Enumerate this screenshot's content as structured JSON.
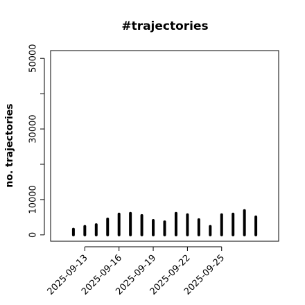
{
  "chart_data": {
    "type": "bar",
    "style": "needle",
    "title": "#trajectories",
    "y_label": "no. trajectories",
    "x": [
      "2025-09-12",
      "2025-09-13",
      "2025-09-14",
      "2025-09-15",
      "2025-09-16",
      "2025-09-17",
      "2025-09-18",
      "2025-09-19",
      "2025-09-20",
      "2025-09-21",
      "2025-09-22",
      "2025-09-23",
      "2025-09-24",
      "2025-09-25",
      "2025-09-26",
      "2025-09-27",
      "2025-09-28"
    ],
    "values": [
      1600,
      2400,
      2900,
      4500,
      5900,
      6100,
      5500,
      4100,
      3700,
      6100,
      5700,
      4300,
      2400,
      5700,
      5900,
      6900,
      5100
    ],
    "color": "#000000",
    "xlim": [
      "2025-09-10",
      "2025-09-30"
    ],
    "xticks": [
      "2025-09-13",
      "2025-09-16",
      "2025-09-19",
      "2025-09-22",
      "2025-09-25"
    ],
    "ylim": [
      -1800,
      52200
    ],
    "yticks": [
      0,
      10000,
      30000,
      50000
    ],
    "yticks_unlabeled": [
      20000,
      40000
    ],
    "grid": false
  }
}
